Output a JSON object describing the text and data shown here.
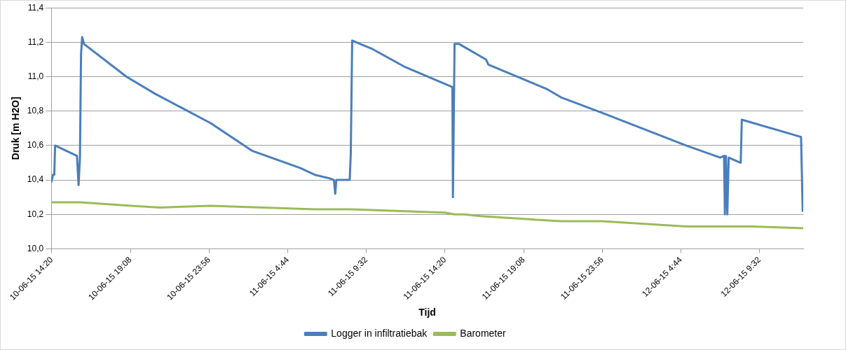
{
  "chart_data": {
    "type": "line",
    "xlabel": "Tijd",
    "ylabel": "Druk [m H2O]",
    "xlim": [
      "--06-10T14:18",
      "--06-12T12:12"
    ],
    "xticks": [
      {
        "value": "--06-10T14:20",
        "label": "10-06-15 14:20"
      },
      {
        "value": "--06-10T19:08",
        "label": "10-06-15 19:08"
      },
      {
        "value": "--06-10T23:56",
        "label": "10-06-15 23:56"
      },
      {
        "value": "--06-11T04:44",
        "label": "11-06-15 4:44"
      },
      {
        "value": "--06-11T09:32",
        "label": "11-06-15 9:32"
      },
      {
        "value": "--06-11T14:20",
        "label": "11-06-15 14:20"
      },
      {
        "value": "--06-11T19:08",
        "label": "11-06-15 19:08"
      },
      {
        "value": "--06-11T23:56",
        "label": "11-06-15 23:56"
      },
      {
        "value": "--06-12T04:44",
        "label": "12-06-15 4:44"
      },
      {
        "value": "--06-12T09:32",
        "label": "12-06-15 9:32"
      }
    ],
    "ylim": [
      10.0,
      11.4
    ],
    "yticks": [
      {
        "value": 10.0,
        "label": "10,0"
      },
      {
        "value": 10.2,
        "label": "10,2"
      },
      {
        "value": 10.4,
        "label": "10,4"
      },
      {
        "value": 10.6,
        "label": "10,6"
      },
      {
        "value": 10.8,
        "label": "10,8"
      },
      {
        "value": 11.0,
        "label": "11,0"
      },
      {
        "value": 11.2,
        "label": "11,2"
      },
      {
        "value": 11.4,
        "label": "11,4"
      }
    ],
    "grid": "y",
    "legend": "bottom",
    "marker": "none",
    "line_style": "solid",
    "series": [
      {
        "name": "Logger in infiltratiebak",
        "color": "#4a7ebb",
        "x": [
          "--06-10T14:19",
          "--06-10T14:24",
          "--06-10T14:29",
          "--06-10T14:32",
          "--06-10T15:52",
          "--06-10T15:58",
          "--06-10T16:03",
          "--06-10T16:07",
          "--06-10T16:11",
          "--06-10T16:18",
          "--06-10T18:53",
          "--06-10T20:39",
          "--06-11T00:02",
          "--06-11T02:33",
          "--06-11T05:29",
          "--06-11T06:23",
          "--06-11T07:16",
          "--06-11T07:33",
          "--06-11T07:38",
          "--06-11T07:42",
          "--06-11T08:31",
          "--06-11T08:35",
          "--06-11T08:40",
          "--06-11T09:55",
          "--06-11T11:49",
          "--06-11T14:47",
          "--06-11T14:49",
          "--06-11T14:55",
          "--06-11T15:12",
          "--06-11T16:50",
          "--06-11T16:59",
          "--06-11T20:31",
          "--06-11T21:25",
          "--06-11T23:55",
          "--06-12T05:03",
          "--06-12T07:08",
          "--06-12T07:22",
          "--06-12T07:25",
          "--06-12T07:29",
          "--06-12T07:34",
          "--06-12T07:39",
          "--06-12T08:23",
          "--06-12T08:27",
          "--06-12T12:04",
          "--06-12T12:10"
        ],
        "values": [
          10.39,
          10.43,
          10.43,
          10.6,
          10.54,
          10.37,
          10.53,
          11.13,
          11.23,
          11.19,
          11.0,
          10.9,
          10.73,
          10.57,
          10.47,
          10.43,
          10.41,
          10.4,
          10.32,
          10.4,
          10.4,
          10.56,
          11.21,
          11.16,
          11.06,
          10.94,
          10.3,
          11.19,
          11.19,
          11.1,
          11.07,
          10.93,
          10.88,
          10.79,
          10.6,
          10.53,
          10.54,
          10.2,
          10.54,
          10.2,
          10.53,
          10.5,
          10.75,
          10.65,
          10.22
        ]
      },
      {
        "name": "Barometer",
        "color": "#9bbb59",
        "x": [
          "--06-10T14:19",
          "--06-10T16:05",
          "--06-10T19:11",
          "--06-10T20:57",
          "--06-11T00:02",
          "--06-11T06:23",
          "--06-11T08:26",
          "--06-11T14:20",
          "--06-11T14:54",
          "--06-11T15:31",
          "--06-11T16:30",
          "--06-11T21:25",
          "--06-11T23:55",
          "--06-12T05:03",
          "--06-12T09:00",
          "--06-12T12:12"
        ],
        "values": [
          10.27,
          10.27,
          10.25,
          10.24,
          10.25,
          10.23,
          10.23,
          10.21,
          10.2,
          10.2,
          10.19,
          10.16,
          10.16,
          10.13,
          10.13,
          10.12
        ]
      }
    ]
  }
}
